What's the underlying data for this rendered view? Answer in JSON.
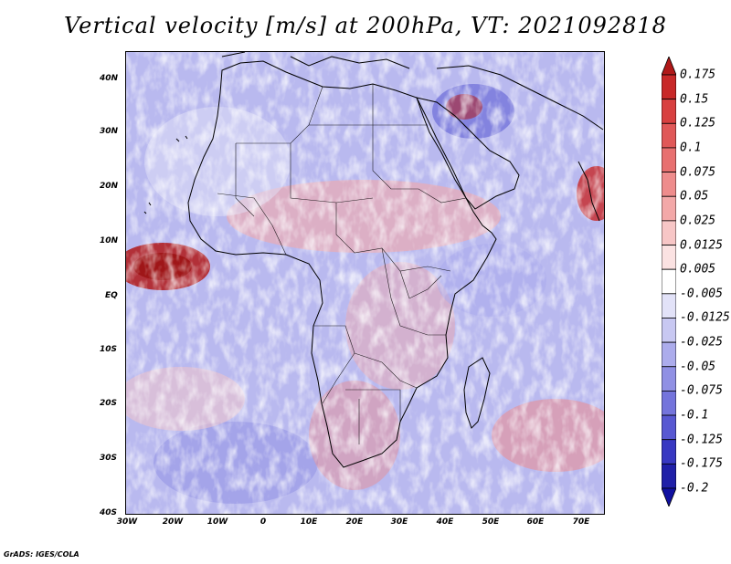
{
  "title": "Vertical velocity [m/s] at 200hPa, VT: 2021092818",
  "footer": "GrADS: IGES/COLA",
  "lat_labels": [
    "40N",
    "30N",
    "20N",
    "10N",
    "EQ",
    "10S",
    "20S",
    "30S",
    "40S"
  ],
  "lon_labels": [
    "30W",
    "20W",
    "10W",
    "0",
    "10E",
    "20E",
    "30E",
    "40E",
    "50E",
    "60E",
    "70E"
  ],
  "colorbar": {
    "labels": [
      "0.175",
      "0.15",
      "0.125",
      "0.1",
      "0.075",
      "0.05",
      "0.025",
      "0.0125",
      "0.005",
      "-0.005",
      "-0.0125",
      "-0.025",
      "-0.05",
      "-0.075",
      "-0.1",
      "-0.125",
      "-0.175",
      "-0.2"
    ],
    "colors": [
      "#b01818",
      "#c82828",
      "#d84040",
      "#e05858",
      "#e87070",
      "#ee8c8c",
      "#f3a8a8",
      "#f7c6c6",
      "#fbe2e2",
      "#ffffff",
      "#e2e2f8",
      "#c8c8f2",
      "#acacec",
      "#9090e4",
      "#7474dc",
      "#5858d2",
      "#3838c2",
      "#2020a8",
      "#1010a0"
    ]
  }
}
